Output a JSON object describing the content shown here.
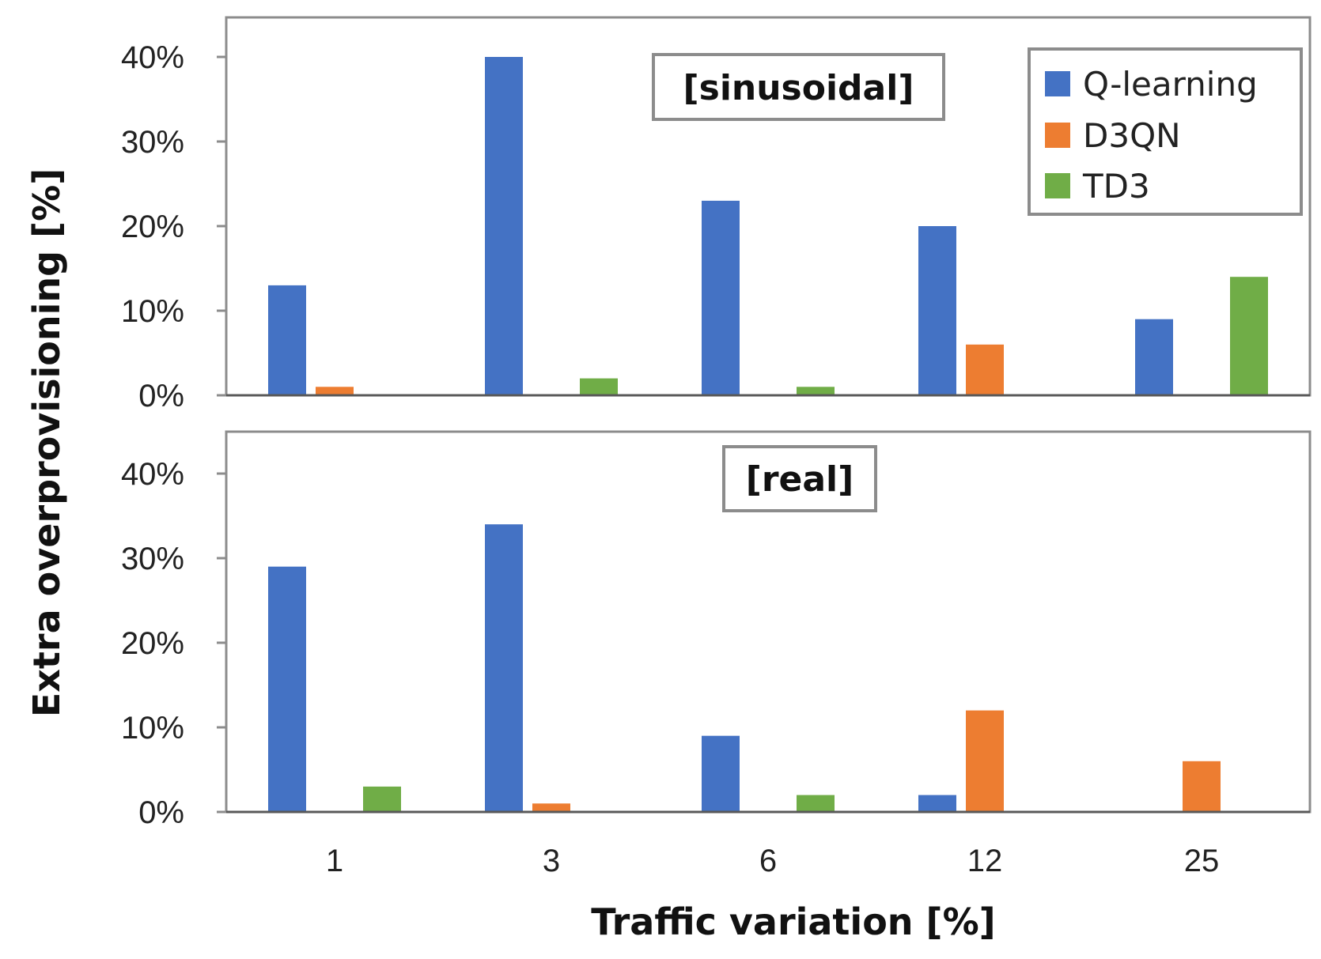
{
  "chart_data": {
    "type": "bar",
    "layout": "two vertically stacked panels sharing the x-axis",
    "categories": [
      "1",
      "3",
      "6",
      "12",
      "25"
    ],
    "xlabel": "Traffic variation [%]",
    "ylabel": "Extra overprovisioning [%]",
    "ylim": [
      0,
      0.44
    ],
    "yticks": [
      "0%",
      "10%",
      "20%",
      "30%",
      "40%"
    ],
    "yticks_values": [
      0,
      0.1,
      0.2,
      0.3,
      0.4
    ],
    "legend": {
      "placement": "top-right",
      "entries": [
        "Q-learning",
        "D3QN",
        "TD3"
      ]
    },
    "colors": {
      "Q-learning": "#4472C4",
      "D3QN": "#ED7D31",
      "TD3": "#70AD47"
    },
    "panels": [
      {
        "label": "[sinusoidal]",
        "series": [
          {
            "name": "Q-learning",
            "values": [
              0.13,
              0.4,
              0.23,
              0.2,
              0.09
            ]
          },
          {
            "name": "D3QN",
            "values": [
              0.01,
              0.0,
              0.0,
              0.06,
              0.0
            ]
          },
          {
            "name": "TD3",
            "values": [
              0.0,
              0.02,
              0.01,
              0.0,
              0.14
            ]
          }
        ]
      },
      {
        "label": "[real]",
        "series": [
          {
            "name": "Q-learning",
            "values": [
              0.29,
              0.34,
              0.09,
              0.02,
              0.0
            ]
          },
          {
            "name": "D3QN",
            "values": [
              0.0,
              0.01,
              0.0,
              0.12,
              0.06
            ]
          },
          {
            "name": "TD3",
            "values": [
              0.03,
              0.0,
              0.02,
              0.0,
              0.0
            ]
          }
        ]
      }
    ]
  }
}
